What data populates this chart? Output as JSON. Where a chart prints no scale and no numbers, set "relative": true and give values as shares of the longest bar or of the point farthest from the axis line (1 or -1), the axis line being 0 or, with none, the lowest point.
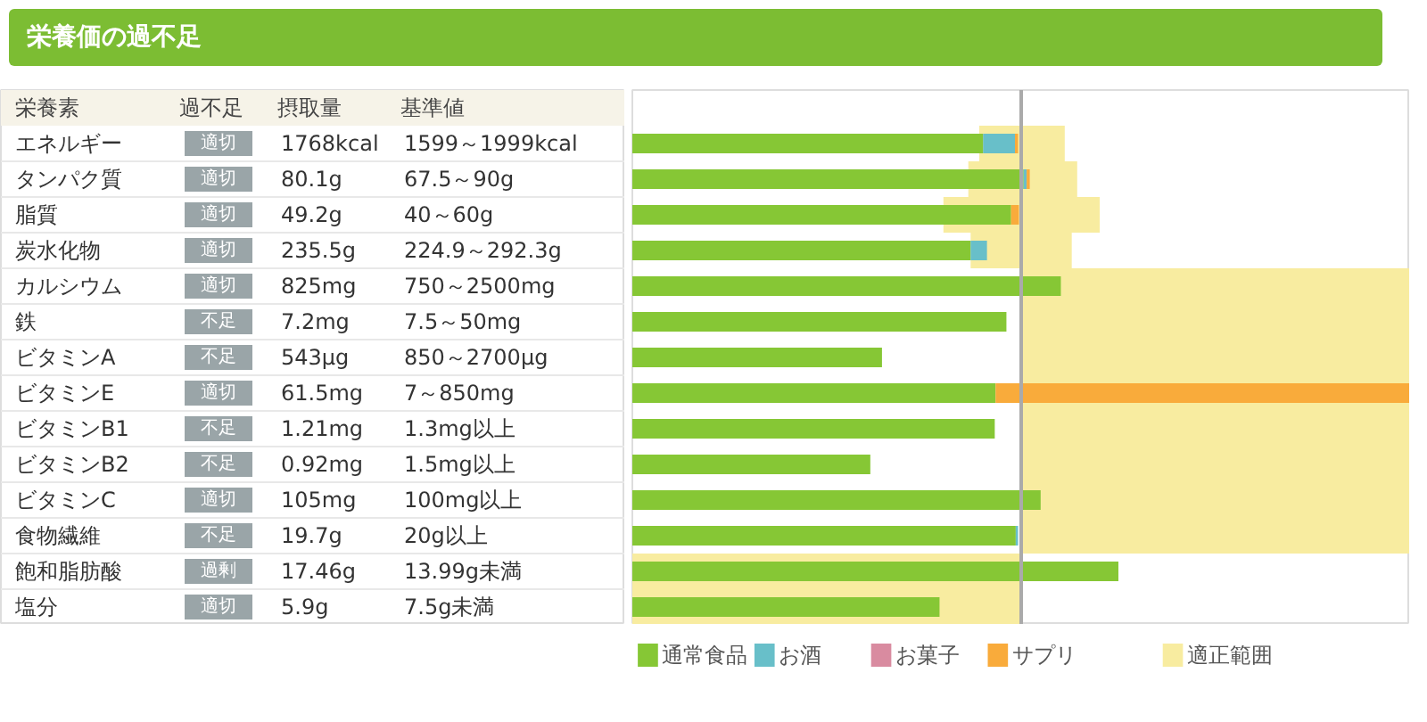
{
  "chart_data": {
    "type": "bar",
    "orientation": "horizontal",
    "stacked": true,
    "relative": true,
    "title": "栄養価の過不足",
    "categories": [
      "エネルギー",
      "タンパク質",
      "脂質",
      "炭水化物",
      "カルシウム",
      "鉄",
      "ビタミンA",
      "ビタミンE",
      "ビタミンB1",
      "ビタミンB2",
      "ビタミンC",
      "食物繊維",
      "飽和脂肪酸",
      "塩分"
    ],
    "series": [
      {
        "name": "通常食品",
        "color": "#86c735",
        "values": [
          0.451,
          0.503,
          0.487,
          0.435,
          0.551,
          0.481,
          0.321,
          0.467,
          0.466,
          0.306,
          0.525,
          0.493,
          0.625,
          0.395
        ]
      },
      {
        "name": "お酒",
        "color": "#68bfc9",
        "values": [
          0.041,
          0.004,
          0,
          0.021,
          0,
          0,
          0,
          0,
          0,
          0,
          0,
          0.003,
          0,
          0
        ]
      },
      {
        "name": "お菓子",
        "color": "#d98ba0",
        "values": [
          0,
          0,
          0,
          0,
          0,
          0,
          0,
          0,
          0,
          0,
          0,
          0,
          0,
          0
        ]
      },
      {
        "name": "サプリ",
        "color": "#f9ab3b",
        "values": [
          0.004,
          0.004,
          0.01,
          0,
          0,
          0,
          0,
          0.533,
          0,
          0,
          0,
          0,
          0,
          0
        ]
      }
    ],
    "bands": [
      {
        "axis": "x",
        "from": 0.446,
        "to": 0.556,
        "color": "#f8eca0",
        "label": "適正範囲"
      },
      {
        "axis": "x",
        "from": 0.432,
        "to": 0.572,
        "color": "#f8eca0"
      },
      {
        "axis": "x",
        "from": 0.4,
        "to": 0.601,
        "color": "#f8eca0"
      },
      {
        "axis": "x",
        "from": 0.435,
        "to": 0.565,
        "color": "#f8eca0"
      },
      {
        "axis": "x",
        "from": 0.5,
        "to": 1,
        "color": "#f8eca0"
      },
      {
        "axis": "x",
        "from": 0.5,
        "to": 1,
        "color": "#f8eca0"
      },
      {
        "axis": "x",
        "from": 0.5,
        "to": 1,
        "color": "#f8eca0"
      },
      {
        "axis": "x",
        "from": 0.5,
        "to": 1,
        "color": "#f8eca0"
      },
      {
        "axis": "x",
        "from": 0.5,
        "to": 1,
        "color": "#f8eca0"
      },
      {
        "axis": "x",
        "from": 0.5,
        "to": 1,
        "color": "#f8eca0"
      },
      {
        "axis": "x",
        "from": 0.5,
        "to": 1,
        "color": "#f8eca0"
      },
      {
        "axis": "x",
        "from": 0.5,
        "to": 1,
        "color": "#f8eca0"
      },
      {
        "axis": "x",
        "from": 0,
        "to": 0.5,
        "color": "#f8eca0"
      },
      {
        "axis": "x",
        "from": 0,
        "to": 0.5,
        "color": "#f8eca0"
      }
    ],
    "ref_lines": [
      {
        "axis": "x",
        "value": 0.5,
        "color": "#aaaaaa"
      }
    ],
    "grid": false,
    "legend": "bottom",
    "annotations": [
      "栄養素",
      "過不足",
      "摂取量",
      "基準値",
      "適切",
      "1768kcal",
      "1599～1999kcal",
      "適切",
      "80.1g",
      "67.5～90g",
      "適切",
      "49.2g",
      "40～60g",
      "適切",
      "235.5g",
      "224.9～292.3g",
      "適切",
      "825mg",
      "750～2500mg",
      "不足",
      "7.2mg",
      "7.5～50mg",
      "不足",
      "543μg",
      "850～2700μg",
      "適切",
      "61.5mg",
      "7～850mg",
      "不足",
      "1.21mg",
      "1.3mg以上",
      "不足",
      "0.92mg",
      "1.5mg以上",
      "適切",
      "105mg",
      "100mg以上",
      "不足",
      "19.7g",
      "20g以上",
      "過剰",
      "17.46g",
      "13.99g未満",
      "適切",
      "5.9g",
      "7.5g未満"
    ]
  }
}
